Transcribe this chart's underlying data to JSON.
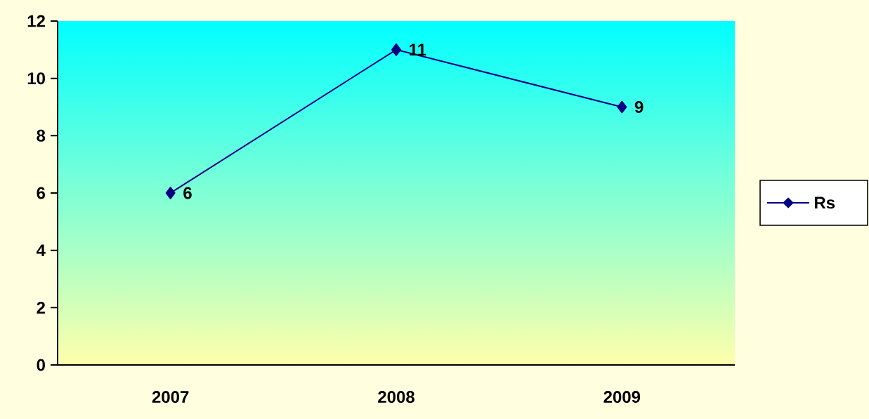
{
  "chart_data": {
    "type": "line",
    "categories": [
      "2007",
      "2008",
      "2009"
    ],
    "series": [
      {
        "name": "Rs",
        "color": "#000080",
        "values": [
          6,
          11,
          9
        ]
      }
    ],
    "ylim": [
      0,
      12
    ],
    "yticks": [
      0,
      2,
      4,
      6,
      8,
      10,
      12
    ],
    "grid": false,
    "legend": "right",
    "marker": "diamond",
    "line_style": "solid",
    "data_labels": true
  }
}
